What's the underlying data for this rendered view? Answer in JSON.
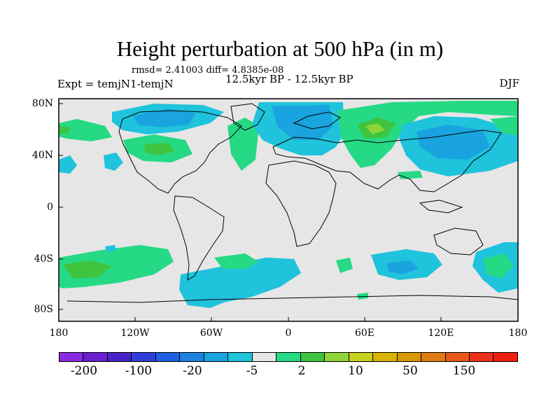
{
  "title": "Height perturbation at 500 hPa (in m)",
  "stats": "rmsd= 2.41003 diff= 4.8385e-08",
  "experiment": "Expt = temjN1-temjN",
  "period": "12.5kyr BP - 12.5kyr BP",
  "season": "DJF",
  "lat_labels": [
    "80N",
    "40N",
    "0",
    "40S",
    "80S"
  ],
  "lon_labels": [
    "180",
    "120W",
    "60W",
    "0",
    "60E",
    "120E",
    "180"
  ],
  "colorbar": {
    "colors": [
      "#8a2be2",
      "#6a1fd0",
      "#4a22c8",
      "#2f3fd8",
      "#1e60e0",
      "#1b82e0",
      "#19a3df",
      "#1fc3dc",
      "#e6e6e6",
      "#25d985",
      "#3ec43e",
      "#8fd43a",
      "#c8d020",
      "#d8b400",
      "#d89800",
      "#e07a10",
      "#e85818",
      "#ee3018",
      "#f02010"
    ],
    "labels": [
      "-200",
      "-100",
      "-20",
      "-5",
      "2",
      "10",
      "50",
      "150"
    ]
  }
}
